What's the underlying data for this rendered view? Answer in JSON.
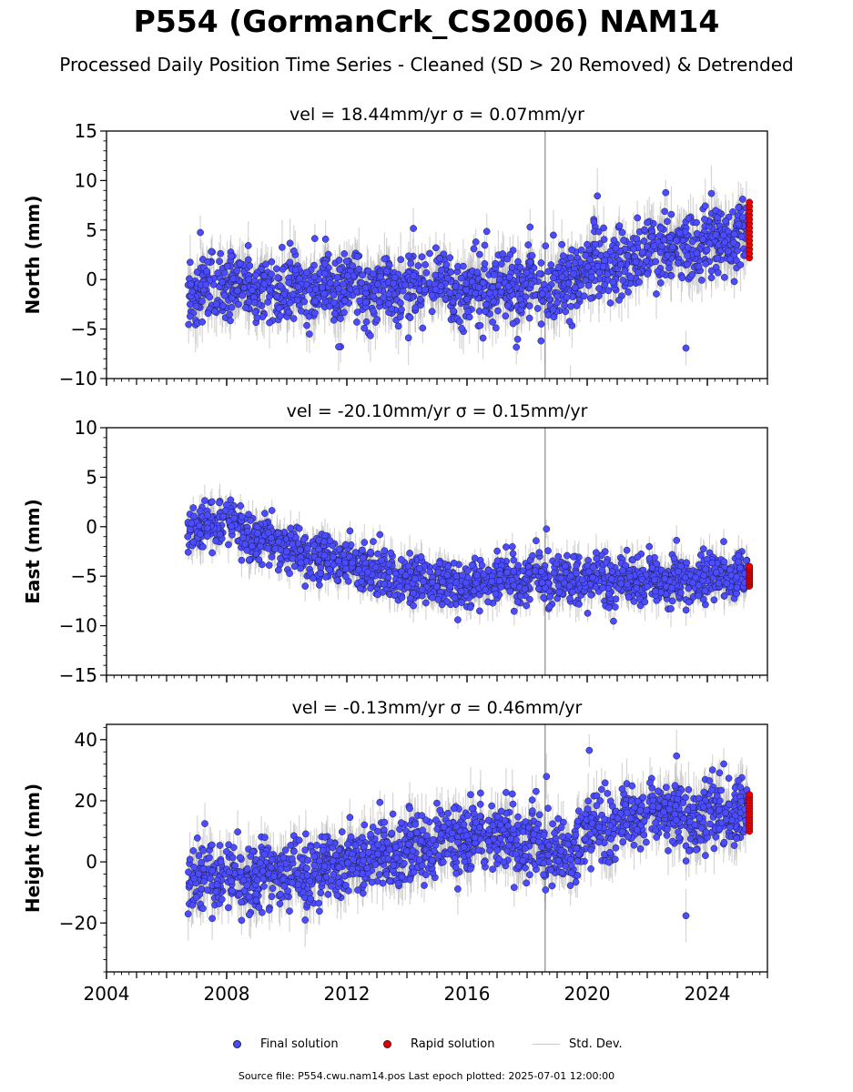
{
  "title": "P554 (GormanCrk_CS2006) NAM14",
  "subtitle": "Processed Daily Position Time Series - Cleaned (SD > 20 Removed) & Detrended",
  "footer": "Source file: P554.cwu.nam14.pos  Last epoch plotted: 2025-07-01 12:00:00",
  "legend": {
    "final_label": "Final solution",
    "rapid_label": "Rapid solution",
    "std_label": "Std. Dev."
  },
  "colors": {
    "final": "#4b4bff",
    "final_edge": "#1c1c3c",
    "rapid": "#e60000",
    "std": "#b4b4b4"
  },
  "chart_data": [
    {
      "type": "scatter",
      "ylabel": "North (mm)",
      "panel_title": "vel = 18.44mm/yr   σ = 0.07mm/yr",
      "xlim": [
        2004,
        2026
      ],
      "ylim": [
        -10,
        15
      ],
      "yticks": [
        -10,
        -5,
        0,
        5,
        10,
        15
      ],
      "xticks": [
        2004,
        2008,
        2012,
        2016,
        2020,
        2024
      ],
      "series": [
        {
          "name": "Final solution",
          "x_range": [
            2006.7,
            2025.35
          ],
          "trend": [
            [
              2006.7,
              -1.0
            ],
            [
              2019.5,
              -0.8
            ],
            [
              2020.0,
              1.5
            ],
            [
              2022.5,
              3.0
            ],
            [
              2025.3,
              4.0
            ]
          ],
          "spread": 2.2
        },
        {
          "name": "Rapid solution",
          "x": 2025.4,
          "y_range": [
            2.2,
            7.8
          ]
        }
      ]
    },
    {
      "type": "scatter",
      "ylabel": "East (mm)",
      "panel_title": "vel = -20.10mm/yr   σ = 0.15mm/yr",
      "xlim": [
        2004,
        2026
      ],
      "ylim": [
        -15,
        10
      ],
      "yticks": [
        -15,
        -10,
        -5,
        0,
        5,
        10
      ],
      "xticks": [
        2004,
        2008,
        2012,
        2016,
        2020,
        2024
      ],
      "series": [
        {
          "name": "Final solution",
          "x_range": [
            2006.7,
            2025.35
          ],
          "trend": [
            [
              2006.7,
              0.0
            ],
            [
              2008.0,
              0.5
            ],
            [
              2009.0,
              -1.0
            ],
            [
              2010.5,
              -2.5
            ],
            [
              2012.5,
              -4.0
            ],
            [
              2014.0,
              -5.5
            ],
            [
              2016.0,
              -6.0
            ],
            [
              2018.0,
              -5.2
            ],
            [
              2020.0,
              -5.5
            ],
            [
              2022.0,
              -5.5
            ],
            [
              2025.3,
              -5.0
            ]
          ],
          "spread": 1.5
        },
        {
          "name": "Rapid solution",
          "x": 2025.4,
          "y_range": [
            -6.0,
            -4.0
          ]
        }
      ]
    },
    {
      "type": "scatter",
      "ylabel": "Height (mm)",
      "panel_title": "vel = -0.13mm/yr   σ = 0.46mm/yr",
      "xlim": [
        2004,
        2026
      ],
      "ylim": [
        -36,
        45
      ],
      "yticks": [
        -20,
        0,
        20,
        40
      ],
      "xticks": [
        2004,
        2008,
        2012,
        2016,
        2020,
        2024
      ],
      "series": [
        {
          "name": "Final solution",
          "x_range": [
            2006.7,
            2025.35
          ],
          "trend": [
            [
              2006.7,
              -5.0
            ],
            [
              2010.0,
              -4.0
            ],
            [
              2012.0,
              -1.0
            ],
            [
              2014.0,
              4.0
            ],
            [
              2016.0,
              8.0
            ],
            [
              2018.0,
              6.0
            ],
            [
              2019.5,
              2.0
            ],
            [
              2020.0,
              10.0
            ],
            [
              2022.5,
              18.0
            ],
            [
              2023.5,
              14.0
            ],
            [
              2025.3,
              16.0
            ]
          ],
          "spread": 7.0
        },
        {
          "name": "Rapid solution",
          "x": 2025.4,
          "y_range": [
            10.0,
            22.0
          ]
        }
      ]
    }
  ]
}
